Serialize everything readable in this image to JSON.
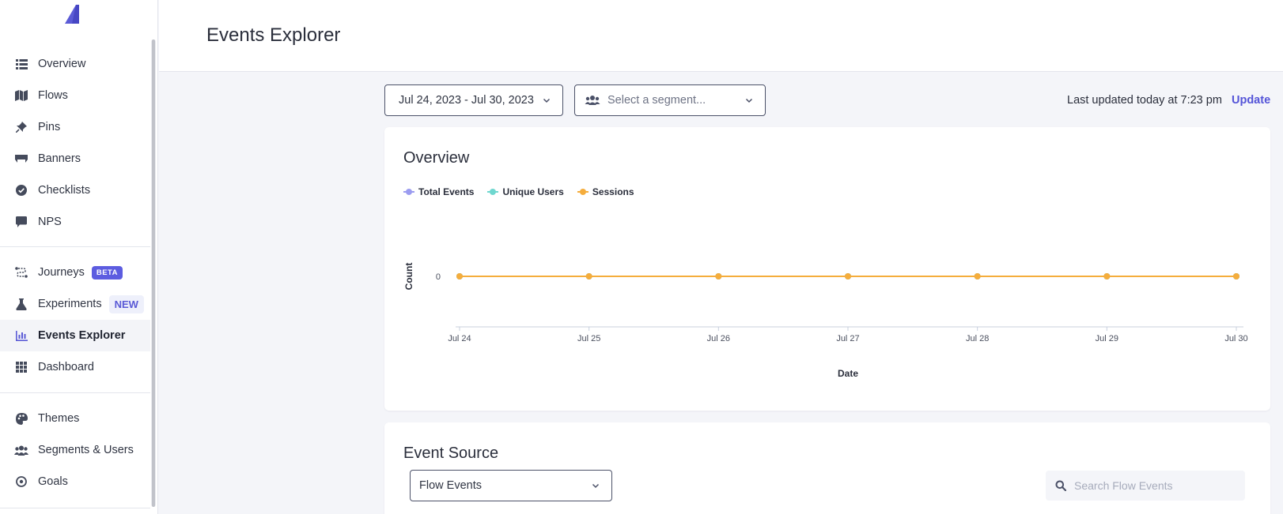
{
  "sidebar": {
    "items_top": [
      {
        "label": "Overview",
        "icon": "list-icon"
      },
      {
        "label": "Flows",
        "icon": "map-icon"
      },
      {
        "label": "Pins",
        "icon": "pin-icon"
      },
      {
        "label": "Banners",
        "icon": "banner-icon"
      },
      {
        "label": "Checklists",
        "icon": "check-circle-icon"
      },
      {
        "label": "NPS",
        "icon": "chat-icon"
      }
    ],
    "items_mid": [
      {
        "label": "Journeys",
        "icon": "journey-icon",
        "badge": "BETA"
      },
      {
        "label": "Experiments",
        "icon": "flask-icon",
        "badge": "NEW"
      },
      {
        "label": "Events Explorer",
        "icon": "bar-chart-icon",
        "active": true
      },
      {
        "label": "Dashboard",
        "icon": "grid-icon"
      }
    ],
    "items_bottom": [
      {
        "label": "Themes",
        "icon": "palette-icon"
      },
      {
        "label": "Segments & Users",
        "icon": "users-icon"
      },
      {
        "label": "Goals",
        "icon": "target-icon"
      }
    ]
  },
  "header": {
    "title": "Events Explorer"
  },
  "controls": {
    "date_range": "Jul 24, 2023 - Jul 30, 2023",
    "segment_placeholder": "Select a segment...",
    "last_updated": "Last updated today at 7:23 pm",
    "update_label": "Update"
  },
  "overview_card": {
    "title": "Overview",
    "legend": [
      {
        "name": "Total Events",
        "color": "#9b9cf0"
      },
      {
        "name": "Unique Users",
        "color": "#6fd7cf"
      },
      {
        "name": "Sessions",
        "color": "#f5ad3c"
      }
    ]
  },
  "chart_data": {
    "type": "line",
    "categories": [
      "Jul 24",
      "Jul 25",
      "Jul 26",
      "Jul 27",
      "Jul 28",
      "Jul 29",
      "Jul 30"
    ],
    "series": [
      {
        "name": "Total Events",
        "values": [
          0,
          0,
          0,
          0,
          0,
          0,
          0
        ],
        "color": "#9b9cf0"
      },
      {
        "name": "Unique Users",
        "values": [
          0,
          0,
          0,
          0,
          0,
          0,
          0
        ],
        "color": "#6fd7cf"
      },
      {
        "name": "Sessions",
        "values": [
          0,
          0,
          0,
          0,
          0,
          0,
          0
        ],
        "color": "#f5ad3c"
      }
    ],
    "yticks": [
      "0"
    ],
    "xlabel": "Date",
    "ylabel": "Count",
    "legend_position": "top-left",
    "grid": false
  },
  "event_source_card": {
    "title": "Event Source",
    "source_value": "Flow Events",
    "search_placeholder": "Search Flow Events"
  }
}
